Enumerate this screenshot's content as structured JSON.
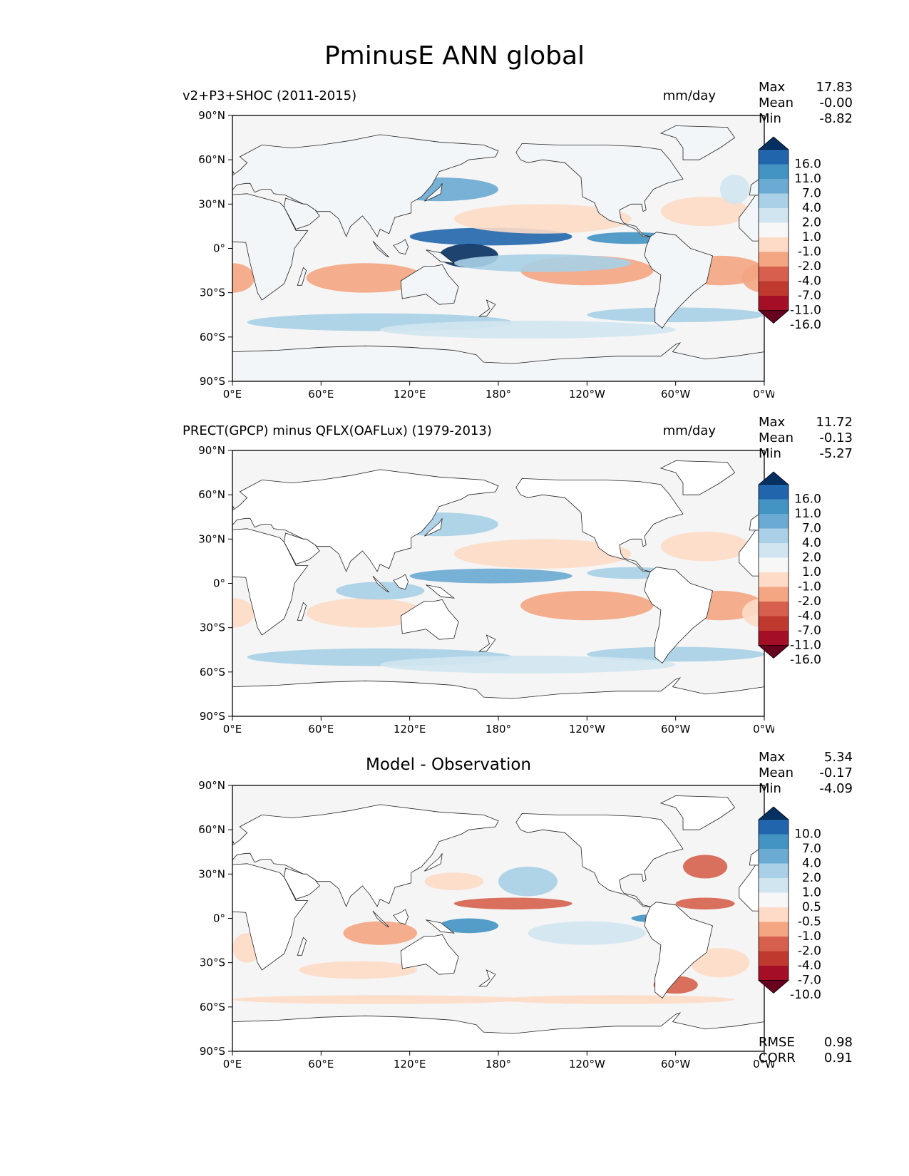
{
  "title": "PminusE ANN global",
  "lat_ticks": [
    "90°N",
    "60°N",
    "30°N",
    "0°",
    "30°S",
    "60°S",
    "90°S"
  ],
  "lon_ticks": [
    "0°E",
    "60°E",
    "120°E",
    "180°",
    "120°W",
    "60°W",
    "0°W"
  ],
  "panels": [
    {
      "left_title": "v2+P3+SHOC (2011-2015)",
      "right_title": "mm/day",
      "center_title": "",
      "stats": {
        "max_label": "Max",
        "max": "17.83",
        "mean_label": "Mean",
        "mean": "-0.00",
        "min_label": "Min",
        "min": "-8.82"
      },
      "colorbar_levels": [
        "16.0",
        "11.0",
        "7.0",
        "4.0",
        "2.0",
        "1.0",
        "-1.0",
        "-2.0",
        "-4.0",
        "-7.0",
        "-11.0",
        "-16.0"
      ]
    },
    {
      "left_title": "PRECT(GPCP) minus QFLX(OAFLux) (1979-2013)",
      "right_title": "mm/day",
      "center_title": "",
      "stats": {
        "max_label": "Max",
        "max": "11.72",
        "mean_label": "Mean",
        "mean": "-0.13",
        "min_label": "Min",
        "min": "-5.27"
      },
      "colorbar_levels": [
        "16.0",
        "11.0",
        "7.0",
        "4.0",
        "2.0",
        "1.0",
        "-1.0",
        "-2.0",
        "-4.0",
        "-7.0",
        "-11.0",
        "-16.0"
      ]
    },
    {
      "left_title": "",
      "right_title": "",
      "center_title": "Model - Observation",
      "stats": {
        "max_label": "Max",
        "max": "5.34",
        "mean_label": "Mean",
        "mean": "-0.17",
        "min_label": "Min",
        "min": "-4.09"
      },
      "colorbar_levels": [
        "10.0",
        "7.0",
        "4.0",
        "2.0",
        "1.0",
        "0.5",
        "-0.5",
        "-1.0",
        "-2.0",
        "-4.0",
        "-7.0",
        "-10.0"
      ],
      "rmse_label": "RMSE",
      "rmse": "0.98",
      "corr_label": "CORR",
      "corr": "0.91"
    }
  ],
  "colors": {
    "colorbar": [
      "#053061",
      "#2166ac",
      "#4393c3",
      "#92c5de",
      "#d1e5f0",
      "#f7f7f7",
      "#fddbc7",
      "#f4a582",
      "#d6604d",
      "#b2182b",
      "#67001f"
    ],
    "cbar_scale": [
      "#053061",
      "#2166ac",
      "#4393c3",
      "#6aaad3",
      "#a9d0e6",
      "#d1e5f0",
      "#f7f7f7",
      "#fddbc7",
      "#f4a582",
      "#d6604d",
      "#c0392f",
      "#a50f26",
      "#67001f"
    ],
    "ocean_neutral": "#f5f5f5"
  }
}
